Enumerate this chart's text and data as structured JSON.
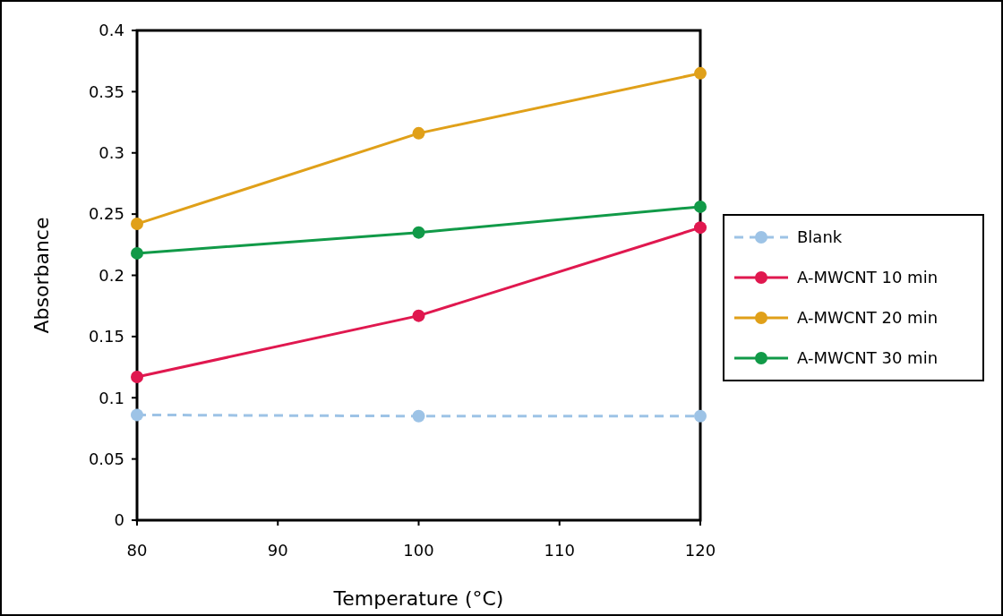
{
  "chart_data": {
    "type": "line",
    "xlabel": "Temperature (°C)",
    "ylabel": "Absorbance",
    "x": [
      80,
      100,
      120
    ],
    "series": [
      {
        "name": "Blank",
        "color": "#9dc3e6",
        "values": [
          0.086,
          0.085,
          0.085
        ],
        "line_style": "dashed"
      },
      {
        "name": "A-MWCNT 10 min",
        "color": "#e0184f",
        "values": [
          0.117,
          0.167,
          0.239
        ]
      },
      {
        "name": "A-MWCNT 20 min",
        "color": "#e0a019",
        "values": [
          0.242,
          0.316,
          0.365
        ]
      },
      {
        "name": "A-MWCNT 30 min",
        "color": "#119a48",
        "values": [
          0.218,
          0.235,
          0.256
        ]
      }
    ],
    "xlim": [
      80,
      120
    ],
    "xticks": [
      80,
      90,
      100,
      110,
      120
    ],
    "ylim": [
      0,
      0.4
    ],
    "yticks": [
      0,
      0.05,
      0.1,
      0.15,
      0.2,
      0.25,
      0.3,
      0.35,
      0.4
    ],
    "grid": false,
    "legend": "right",
    "marker": "circle",
    "line_style": "solid"
  }
}
